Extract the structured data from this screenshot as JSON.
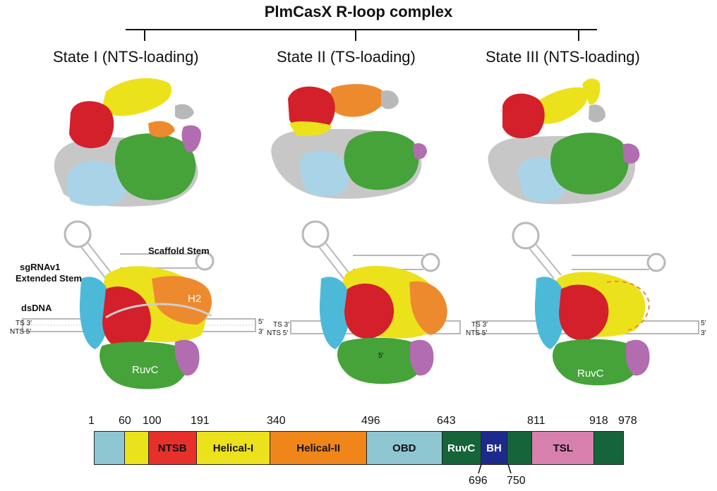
{
  "figure": {
    "title": "PlmCasX R-loop complex",
    "states": [
      {
        "label": "State I (NTS-loading)"
      },
      {
        "label": "State II (TS-loading)"
      },
      {
        "label": "State III (NTS-loading)"
      }
    ],
    "schematic_labels": {
      "scaffold_stem": "Scaffold Stem",
      "sgrna_line1": "sgRNAv1",
      "sgrna_line2": "Extended Stem",
      "dsdna": "dsDNA",
      "ts3": "TS 3'",
      "nts5": "NTS 5'",
      "five_prime": "5'",
      "three_prime": "3'",
      "h2": "H2",
      "ruvc": "RuvC",
      "five_prime_inner": "5'"
    },
    "domain_map": {
      "segments": [
        {
          "label": "",
          "start": 1,
          "end": 60,
          "color": "#8ec7d2"
        },
        {
          "label": "",
          "start": 60,
          "end": 100,
          "color": "#ece21c"
        },
        {
          "label": "NTSB",
          "start": 100,
          "end": 191,
          "color": "#e8302b",
          "text_color": "#111111"
        },
        {
          "label": "Helical-I",
          "start": 191,
          "end": 340,
          "color": "#ece21c",
          "text_color": "#111111"
        },
        {
          "label": "Helical-II",
          "start": 340,
          "end": 496,
          "color": "#f0861a",
          "text_color": "#111111"
        },
        {
          "label": "OBD",
          "start": 496,
          "end": 643,
          "color": "#8ec7d2",
          "text_color": "#111111"
        },
        {
          "label": "RuvC",
          "start": 643,
          "end": 696,
          "color": "#15643a",
          "text_color": "#ffffff"
        },
        {
          "label": "BH",
          "start": 696,
          "end": 750,
          "color": "#1c2a8e",
          "text_color": "#ffffff"
        },
        {
          "label": "",
          "start": 750,
          "end": 811,
          "color": "#15643a"
        },
        {
          "label": "TSL",
          "start": 811,
          "end": 918,
          "color": "#d880ad",
          "text_color": "#111111"
        },
        {
          "label": "",
          "start": 918,
          "end": 978,
          "color": "#15643a"
        }
      ],
      "top_ticks": [
        "1",
        "60",
        "100",
        "191",
        "340",
        "496",
        "643",
        "811",
        "918",
        "978"
      ],
      "bottom_ticks": [
        "696",
        "750"
      ]
    },
    "colors": {
      "red": "#d4202a",
      "yellow": "#ece21c",
      "orange": "#ee8a2e",
      "green": "#45a33a",
      "cyan": "#4db9d9",
      "purple": "#b26cb0",
      "grey": "#b8b8b8",
      "lightblue": "#a9d4e8"
    }
  }
}
